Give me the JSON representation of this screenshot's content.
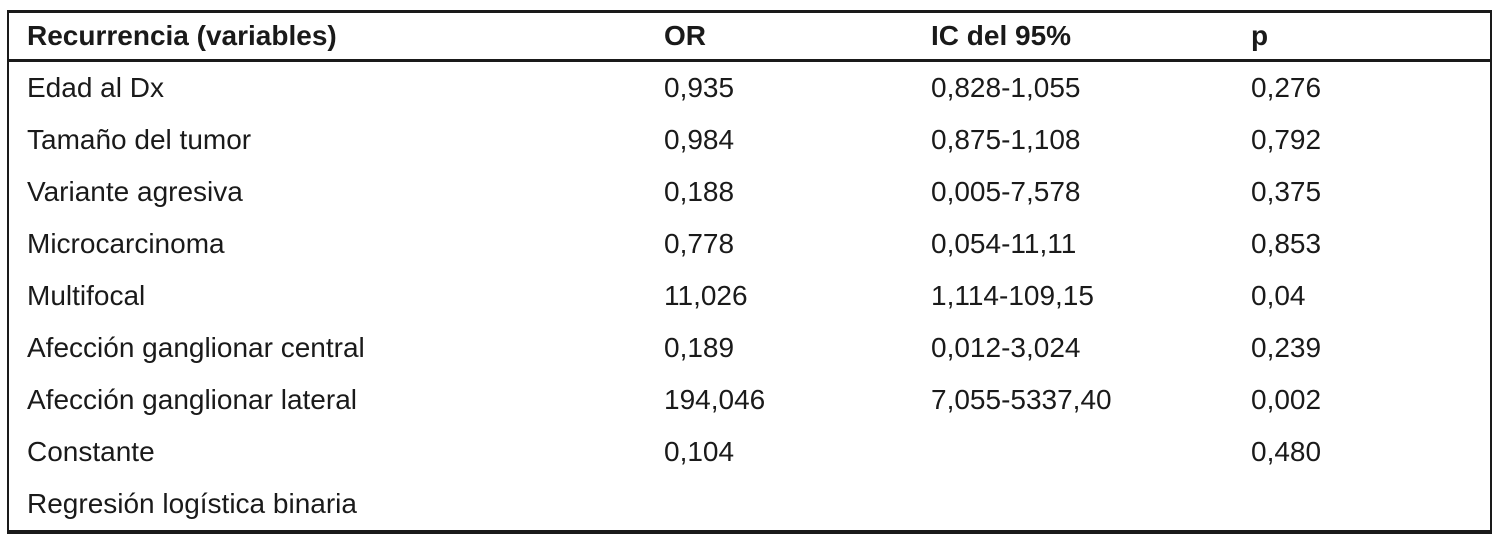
{
  "table": {
    "title_semantic": "Binary logistic regression results for recurrence",
    "columns": [
      "Recurrencia (variables)",
      "OR",
      "IC del 95%",
      "p"
    ],
    "rows": [
      {
        "variable": "Edad al Dx",
        "or": "0,935",
        "ic": "0,828-1,055",
        "p": "0,276"
      },
      {
        "variable": "Tamaño del tumor",
        "or": "0,984",
        "ic": "0,875-1,108",
        "p": "0,792"
      },
      {
        "variable": "Variante agresiva",
        "or": "0,188",
        "ic": "0,005-7,578",
        "p": "0,375"
      },
      {
        "variable": "Microcarcinoma",
        "or": "0,778",
        "ic": "0,054-11,11",
        "p": "0,853"
      },
      {
        "variable": "Multifocal",
        "or": "11,026",
        "ic": "1,114-109,15",
        "p": "0,04"
      },
      {
        "variable": "Afección ganglionar central",
        "or": "0,189",
        "ic": "0,012-3,024",
        "p": "0,239"
      },
      {
        "variable": "Afección ganglionar lateral",
        "or": "194,046",
        "ic": "7,055-5337,40",
        "p": "0,002"
      },
      {
        "variable": "Constante",
        "or": "0,104",
        "ic": "",
        "p": "0,480"
      }
    ],
    "footer_note": "Regresión logística binaria"
  },
  "colors": {
    "background": "#ffffff",
    "text": "#1a1a1a",
    "border": "#1a1a1a"
  }
}
